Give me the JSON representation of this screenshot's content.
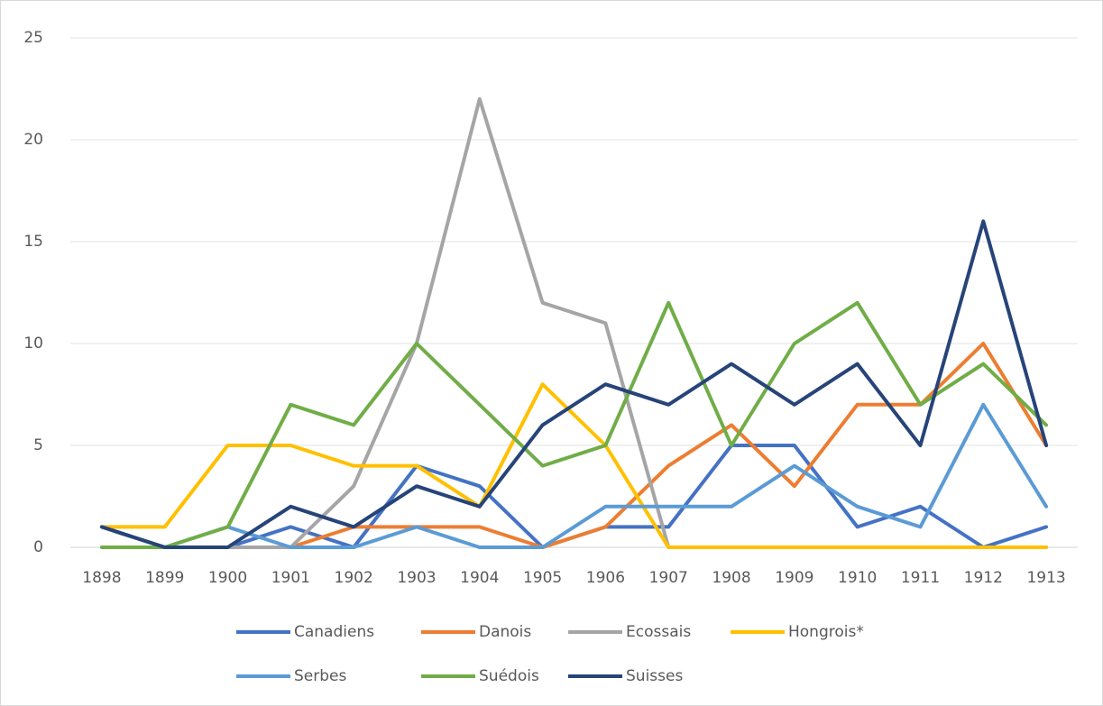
{
  "chart_data": {
    "type": "line",
    "categories": [
      "1898",
      "1899",
      "1900",
      "1901",
      "1902",
      "1903",
      "1904",
      "1905",
      "1906",
      "1907",
      "1908",
      "1909",
      "1910",
      "1911",
      "1912",
      "1913"
    ],
    "series": [
      {
        "name": "Canadiens",
        "color": "#4472c4",
        "values": [
          1,
          0,
          0,
          1,
          0,
          4,
          3,
          0,
          1,
          1,
          5,
          5,
          1,
          2,
          0,
          1
        ]
      },
      {
        "name": "Danois",
        "color": "#ed7d31",
        "values": [
          1,
          0,
          0,
          0,
          1,
          1,
          1,
          0,
          1,
          4,
          6,
          3,
          7,
          7,
          10,
          5
        ]
      },
      {
        "name": "Ecossais",
        "color": "#a5a5a5",
        "values": [
          1,
          0,
          0,
          0,
          3,
          10,
          22,
          12,
          11,
          0,
          0,
          0,
          0,
          0,
          0,
          0
        ]
      },
      {
        "name": "Hongrois*",
        "color": "#ffc000",
        "values": [
          1,
          1,
          5,
          5,
          4,
          4,
          2,
          8,
          5,
          0,
          0,
          0,
          0,
          0,
          0,
          0
        ]
      },
      {
        "name": "Serbes",
        "color": "#5b9bd5",
        "values": [
          1,
          0,
          1,
          0,
          0,
          1,
          0,
          0,
          2,
          2,
          2,
          4,
          2,
          1,
          7,
          2
        ]
      },
      {
        "name": "Suédois",
        "color": "#70ad47",
        "values": [
          0,
          0,
          1,
          7,
          6,
          10,
          7,
          4,
          5,
          12,
          5,
          10,
          12,
          7,
          9,
          6
        ]
      },
      {
        "name": "Suisses",
        "color": "#264478",
        "values": [
          1,
          0,
          0,
          2,
          1,
          3,
          2,
          6,
          8,
          7,
          9,
          7,
          9,
          5,
          16,
          5
        ]
      }
    ],
    "ylim": [
      0,
      25
    ],
    "yticks": [
      0,
      5,
      10,
      15,
      20,
      25
    ],
    "grid": true,
    "legend": "bottom"
  }
}
